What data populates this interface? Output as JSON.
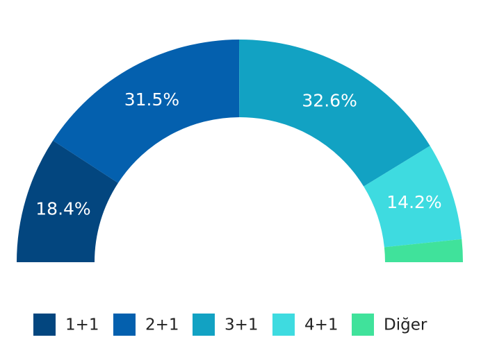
{
  "chart_data": {
    "type": "semi-donut",
    "categories": [
      "1+1",
      "2+1",
      "3+1",
      "4+1",
      "Diğer"
    ],
    "values": [
      18.4,
      31.5,
      32.6,
      14.2,
      3.3
    ],
    "value_labels": [
      "18.4%",
      "31.5%",
      "32.6%",
      "14.2%",
      null
    ],
    "colors": [
      "#03467f",
      "#0460ae",
      "#12a2c3",
      "#3edbe0",
      "#40e29b"
    ],
    "legend": "bottom"
  }
}
